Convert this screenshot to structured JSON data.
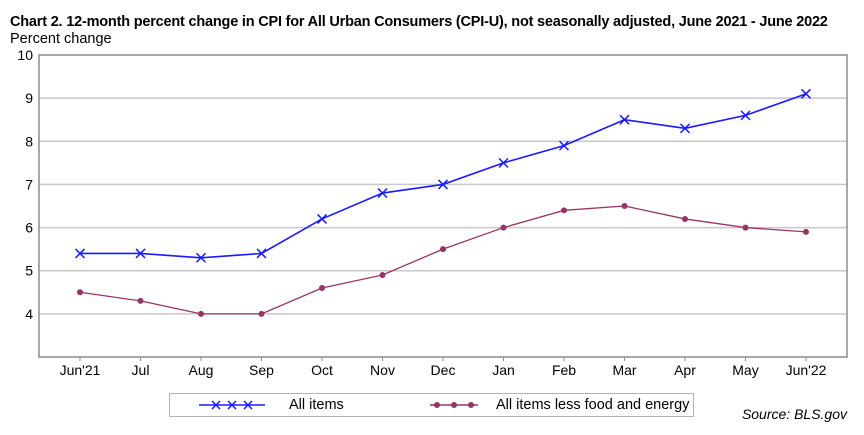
{
  "chart_data": {
    "type": "line",
    "title": "Chart 2. 12-month percent change in CPI for All Urban Consumers (CPI-U), not seasonally adjusted, June 2021 - June 2022",
    "ylabel": "Percent change",
    "xlabel": "",
    "categories": [
      "Jun'21",
      "Jul",
      "Aug",
      "Sep",
      "Oct",
      "Nov",
      "Dec",
      "Jan",
      "Feb",
      "Mar",
      "Apr",
      "May",
      "Jun'22"
    ],
    "ylim": [
      3,
      10
    ],
    "yticks": [
      4,
      5,
      6,
      7,
      8,
      9,
      10
    ],
    "grid": true,
    "legend_position": "bottom",
    "series": [
      {
        "name": "All items",
        "color": "#1a1aff",
        "marker": "x",
        "values": [
          5.4,
          5.4,
          5.3,
          5.4,
          6.2,
          6.8,
          7.0,
          7.5,
          7.9,
          8.5,
          8.3,
          8.6,
          9.1
        ]
      },
      {
        "name": "All items less food and energy",
        "color": "#993366",
        "marker": "circle",
        "values": [
          4.5,
          4.3,
          4.0,
          4.0,
          4.6,
          4.9,
          5.5,
          6.0,
          6.4,
          6.5,
          6.2,
          6.0,
          5.9
        ]
      }
    ],
    "source": "Source: BLS.gov"
  }
}
